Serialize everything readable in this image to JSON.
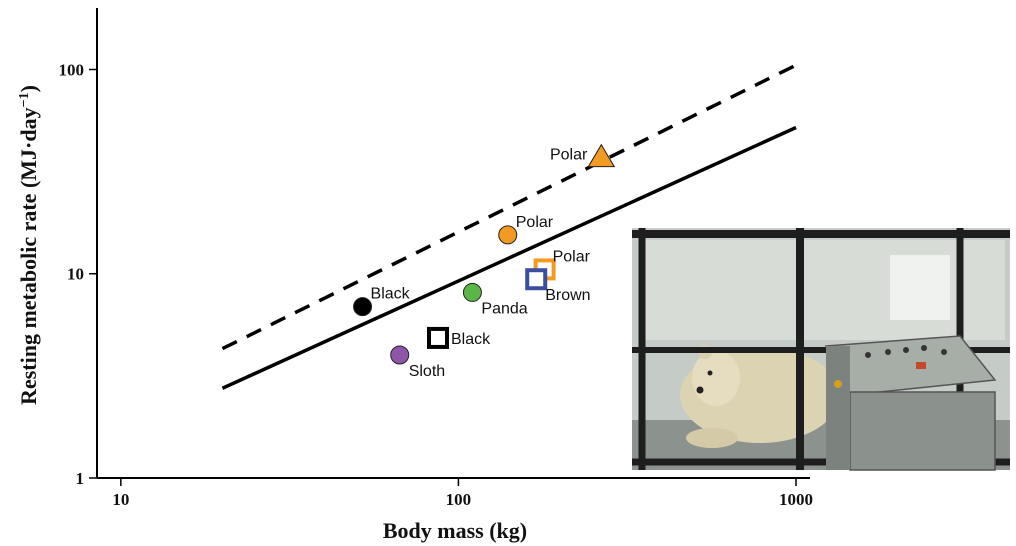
{
  "chart_data": {
    "type": "scatter",
    "xlabel": "Body mass (kg)",
    "ylabel": "Resting metabolic rate (MJ·day",
    "ylabel_sup": "−1",
    "ylabel_close": ")",
    "x_scale": "log",
    "y_scale": "log",
    "xlim": [
      8.5,
      1100
    ],
    "ylim": [
      1,
      200
    ],
    "x_ticks": [
      {
        "value": 10,
        "label": "10"
      },
      {
        "value": 100,
        "label": "100"
      },
      {
        "value": 1000,
        "label": "1000"
      }
    ],
    "y_ticks": [
      {
        "value": 1,
        "label": "1"
      },
      {
        "value": 10,
        "label": "10"
      },
      {
        "value": 100,
        "label": "100"
      }
    ],
    "lines": [
      {
        "style": "dashed",
        "x": [
          20,
          1000
        ],
        "y": [
          4.3,
          105
        ]
      },
      {
        "style": "solid",
        "x": [
          20,
          1000
        ],
        "y": [
          2.75,
          52
        ]
      }
    ],
    "points": [
      {
        "label": "Black",
        "marker": "circle",
        "filled": true,
        "color": "#000000",
        "x": 52,
        "y": 6.9,
        "label_pos": "upper-right"
      },
      {
        "label": "Sloth",
        "marker": "circle",
        "filled": true,
        "color": "#8e56a8",
        "x": 67,
        "y": 4.0,
        "label_pos": "lower-right"
      },
      {
        "label": "Black",
        "marker": "square",
        "filled": false,
        "color": "#000000",
        "x": 87,
        "y": 4.85,
        "label_pos": "right"
      },
      {
        "label": "Panda",
        "marker": "circle",
        "filled": true,
        "color": "#5ab646",
        "x": 110,
        "y": 8.1,
        "label_pos": "lower-right"
      },
      {
        "label": "Polar",
        "marker": "circle",
        "filled": true,
        "color": "#f29a22",
        "x": 140,
        "y": 15.5,
        "label_pos": "upper-right"
      },
      {
        "label": "Polar",
        "marker": "square",
        "filled": false,
        "color": "#f29a22",
        "x": 180,
        "y": 10.5,
        "label_pos": "upper-right"
      },
      {
        "label": "Brown",
        "marker": "square",
        "filled": false,
        "color": "#3a4f9f",
        "x": 170,
        "y": 9.4,
        "label_pos": "lower-right"
      },
      {
        "label": "Polar",
        "marker": "triangle",
        "filled": true,
        "color": "#f29a22",
        "x": 265,
        "y": 37,
        "label_pos": "left"
      }
    ]
  },
  "inset_photo": {
    "subject": "polar-bear-in-metabolic-chamber",
    "colors": {
      "frame": "#1e1e1e",
      "glass": "#c7ccc7",
      "bear": "#d9cfae",
      "console": "#8f9590"
    }
  }
}
